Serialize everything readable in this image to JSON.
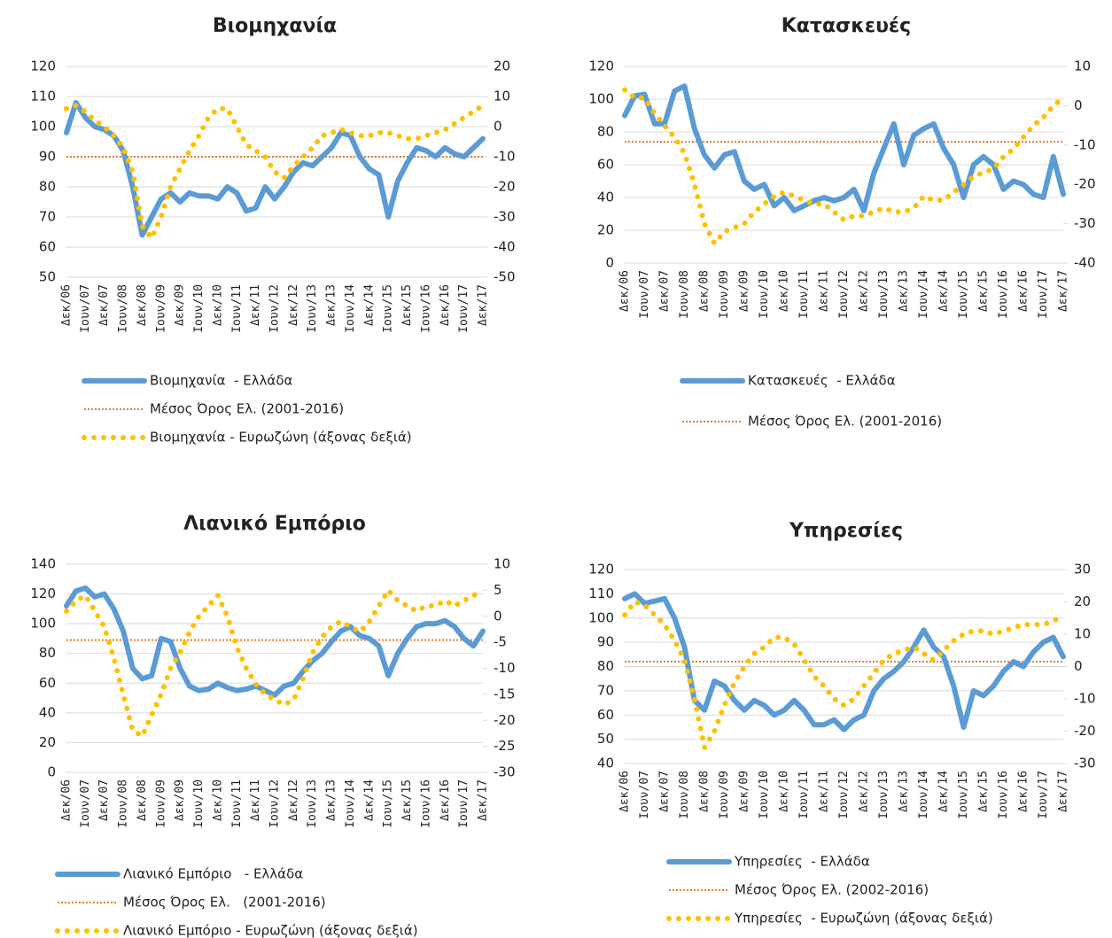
{
  "chart_data": [
    {
      "type": "line",
      "title": "Βιομηχανία",
      "categories": [
        "Δεκ/06",
        null,
        "Ιουν/07",
        null,
        "Δεκ/07",
        null,
        "Ιουν/08",
        null,
        "Δεκ/08",
        null,
        "Ιουν/09",
        null,
        "Δεκ/09",
        null,
        "Ιουν/10",
        null,
        "Δεκ/10",
        null,
        "Ιουν/11",
        null,
        "Δεκ/11",
        null,
        "Ιουν/12",
        null,
        "Δεκ/12",
        null,
        "Ιουν/13",
        null,
        "Δεκ/13",
        null,
        "Ιουν/14",
        null,
        "Δεκ/14",
        null,
        "Ιουν/15",
        null,
        "Δεκ/15",
        null,
        "Ιουν/16",
        null,
        "Δεκ/16",
        null,
        "Ιουν/17",
        null,
        "Δεκ/17"
      ],
      "ylim": [
        50,
        120
      ],
      "yticks": [
        50,
        60,
        70,
        80,
        90,
        100,
        110,
        120
      ],
      "y2lim": [
        -50,
        20
      ],
      "y2ticks": [
        -50,
        -40,
        -30,
        -20,
        -10,
        0,
        10,
        20
      ],
      "series": [
        {
          "name": "Βιομηχανία  - Ελλάδα",
          "color": "#5b9bd5",
          "values": [
            98,
            108,
            103,
            100,
            99,
            97,
            92,
            80,
            64,
            70,
            76,
            78,
            75,
            78,
            77,
            77,
            76,
            80,
            78,
            72,
            73,
            80,
            76,
            80,
            85,
            88,
            87,
            90,
            93,
            98,
            97,
            90,
            86,
            84,
            70,
            82,
            88,
            93,
            92,
            90,
            93,
            91,
            90,
            93,
            96
          ]
        },
        {
          "name": "Βιομηχανία - Ευρωζώνη (άξονας δεξιά)",
          "color": "#ffc000",
          "axis": "y2",
          "values": [
            6,
            7,
            5,
            2,
            0,
            -3,
            -7,
            -15,
            -33,
            -37,
            -30,
            -20,
            -14,
            -8,
            -3,
            3,
            6,
            6,
            0,
            -6,
            -8,
            -10,
            -15,
            -17,
            -13,
            -10,
            -7,
            -3,
            -2,
            -1,
            -2,
            -3,
            -3,
            -2,
            -2,
            -3,
            -4,
            -4,
            -3,
            -2,
            -1,
            1,
            3,
            5,
            7
          ]
        }
      ],
      "reference_line": {
        "name": "Μέσος Όρος Ελ. (2001-2016)",
        "color": "#ed7d31",
        "value": 90
      }
    },
    {
      "type": "line",
      "title": "Κατασκευές",
      "categories": [
        "Δεκ/06",
        null,
        "Ιουν/07",
        null,
        "Δεκ/07",
        null,
        "Ιουν/08",
        null,
        "Δεκ/08",
        null,
        "Ιουν/09",
        null,
        "Δεκ/09",
        null,
        "Ιουν/10",
        null,
        "Δεκ/10",
        null,
        "Ιουν/11",
        null,
        "Δεκ/11",
        null,
        "Ιουν/12",
        null,
        "Δεκ/12",
        null,
        "Ιουν/13",
        null,
        "Δεκ/13",
        null,
        "Ιουν/14",
        null,
        "Δεκ/14",
        null,
        "Ιουν/15",
        null,
        "Δεκ/15",
        null,
        "Ιουν/16",
        null,
        "Δεκ/16",
        null,
        "Ιουν/17",
        null,
        "Δεκ/17"
      ],
      "ylim": [
        0,
        120
      ],
      "yticks": [
        0,
        20,
        40,
        60,
        80,
        100,
        120
      ],
      "y2lim": [
        -40,
        10
      ],
      "y2ticks": [
        -40,
        -30,
        -20,
        -10,
        0,
        10
      ],
      "series": [
        {
          "name": "Κατασκευές  - Ελλάδα",
          "color": "#5b9bd5",
          "values": [
            90,
            102,
            103,
            85,
            85,
            105,
            108,
            82,
            66,
            58,
            66,
            68,
            50,
            45,
            48,
            35,
            40,
            32,
            35,
            38,
            40,
            38,
            40,
            45,
            32,
            55,
            70,
            85,
            60,
            78,
            82,
            85,
            70,
            60,
            40,
            60,
            65,
            60,
            45,
            50,
            48,
            42,
            40,
            65,
            42
          ]
        },
        {
          "color": "#ffc000",
          "axis": "y2",
          "values": [
            4,
            2,
            2,
            -2,
            -5,
            -8,
            -12,
            -20,
            -30,
            -35,
            -32,
            -31,
            -30,
            -27,
            -25,
            -23,
            -22,
            -23,
            -24,
            -25,
            -25,
            -27,
            -29,
            -28,
            -28,
            -27,
            -26,
            -27,
            -27,
            -26,
            -23,
            -24,
            -24,
            -22,
            -20,
            -18,
            -17,
            -16,
            -13,
            -11,
            -8,
            -5,
            -3,
            0,
            2
          ]
        }
      ],
      "reference_line": {
        "name": "Μέσος Όρος Ελ. (2001-2016)",
        "color": "#ed7d31",
        "value": 74
      }
    },
    {
      "type": "line",
      "title": "Λιανικό Εμπόριο",
      "categories": [
        "Δεκ/06",
        null,
        "Ιουν/07",
        null,
        "Δεκ/07",
        null,
        "Ιουν/08",
        null,
        "Δεκ/08",
        null,
        "Ιουν/09",
        null,
        "Δεκ/09",
        null,
        "Ιουν/10",
        null,
        "Δεκ/10",
        null,
        "Ιουν/11",
        null,
        "Δεκ/11",
        null,
        "Ιουν/12",
        null,
        "Δεκ/12",
        null,
        "Ιουν/13",
        null,
        "Δεκ/13",
        null,
        "Ιουν/14",
        null,
        "Δεκ/14",
        null,
        "Ιουν/15",
        null,
        "Δεκ/15",
        null,
        "Ιουν/16",
        null,
        "Δεκ/16",
        null,
        "Ιουν/17",
        null,
        "Δεκ/17"
      ],
      "ylim": [
        0,
        140
      ],
      "yticks": [
        0,
        20,
        40,
        60,
        80,
        100,
        120,
        140
      ],
      "y2lim": [
        -30,
        10
      ],
      "y2ticks": [
        -30,
        -25,
        -20,
        -15,
        -10,
        -5,
        0,
        5,
        10
      ],
      "series": [
        {
          "name": "Λιανικό Εμπόριο   - Ελλάδα",
          "color": "#5b9bd5",
          "values": [
            112,
            122,
            124,
            118,
            120,
            110,
            95,
            70,
            63,
            65,
            90,
            88,
            70,
            58,
            55,
            56,
            60,
            57,
            55,
            56,
            58,
            55,
            52,
            58,
            60,
            68,
            75,
            80,
            88,
            95,
            98,
            92,
            90,
            85,
            65,
            80,
            90,
            98,
            100,
            100,
            102,
            98,
            90,
            85,
            95
          ]
        },
        {
          "name": "Λιανικό Εμπόριο - Ευρωζώνη (άξονας δεξιά)",
          "color": "#ffc000",
          "axis": "y2",
          "values": [
            1,
            3,
            4,
            1,
            -2,
            -8,
            -15,
            -22,
            -23,
            -19,
            -15,
            -10,
            -7,
            -3,
            0,
            2,
            4,
            0,
            -6,
            -10,
            -13,
            -15,
            -16,
            -17,
            -16,
            -12,
            -7,
            -4,
            -2,
            -1,
            -2,
            -3,
            -1,
            2,
            5,
            3,
            2,
            1,
            2,
            2,
            3,
            2,
            3,
            4,
            5
          ]
        }
      ],
      "reference_line": {
        "name": "Μέσος Όρος Ελ.   (2001-2016)",
        "color": "#ed7d31",
        "value": 89
      }
    },
    {
      "type": "line",
      "title": "Υπηρεσίες",
      "categories": [
        "Δεκ/06",
        null,
        "Ιουν/07",
        null,
        "Δεκ/07",
        null,
        "Ιουν/08",
        null,
        "Δεκ/08",
        null,
        "Ιουν/09",
        null,
        "Δεκ/09",
        null,
        "Ιουν/10",
        null,
        "Δεκ/10",
        null,
        "Ιουν/11",
        null,
        "Δεκ/11",
        null,
        "Ιουν/12",
        null,
        "Δεκ/12",
        null,
        "Ιουν/13",
        null,
        "Δεκ/13",
        null,
        "Ιουν/14",
        null,
        "Δεκ/14",
        null,
        "Ιουν/15",
        null,
        "Δεκ/15",
        null,
        "Ιουν/16",
        null,
        "Δεκ/16",
        null,
        "Ιουν/17",
        null,
        "Δεκ/17"
      ],
      "ylim": [
        40,
        120
      ],
      "yticks": [
        40,
        50,
        60,
        70,
        80,
        90,
        100,
        110,
        120
      ],
      "y2lim": [
        -30,
        30
      ],
      "y2ticks": [
        -30,
        -20,
        -10,
        0,
        10,
        20,
        30
      ],
      "series": [
        {
          "name": "Υπηρεσίες  - Ελλάδα",
          "color": "#5b9bd5",
          "values": [
            108,
            110,
            106,
            107,
            108,
            100,
            88,
            66,
            62,
            74,
            72,
            66,
            62,
            66,
            64,
            60,
            62,
            66,
            62,
            56,
            56,
            58,
            54,
            58,
            60,
            70,
            75,
            78,
            82,
            88,
            95,
            88,
            84,
            72,
            55,
            70,
            68,
            72,
            78,
            82,
            80,
            86,
            90,
            92,
            84
          ]
        },
        {
          "name": "Υπηρεσίες  - Ευρωζώνη (άξονας δεξιά)",
          "color": "#ffc000",
          "axis": "y2",
          "values": [
            16,
            20,
            19,
            16,
            13,
            8,
            2,
            -10,
            -25,
            -20,
            -12,
            -5,
            0,
            4,
            6,
            9,
            9,
            7,
            2,
            -3,
            -6,
            -10,
            -12,
            -10,
            -6,
            -2,
            2,
            4,
            5,
            6,
            4,
            2,
            5,
            8,
            10,
            11,
            11,
            10,
            11,
            12,
            13,
            13,
            13,
            14,
            16
          ]
        }
      ],
      "reference_line": {
        "name": "Μέσος Όρος Ελ. (2002-2016)",
        "color": "#ed7d31",
        "value": 82
      }
    }
  ]
}
